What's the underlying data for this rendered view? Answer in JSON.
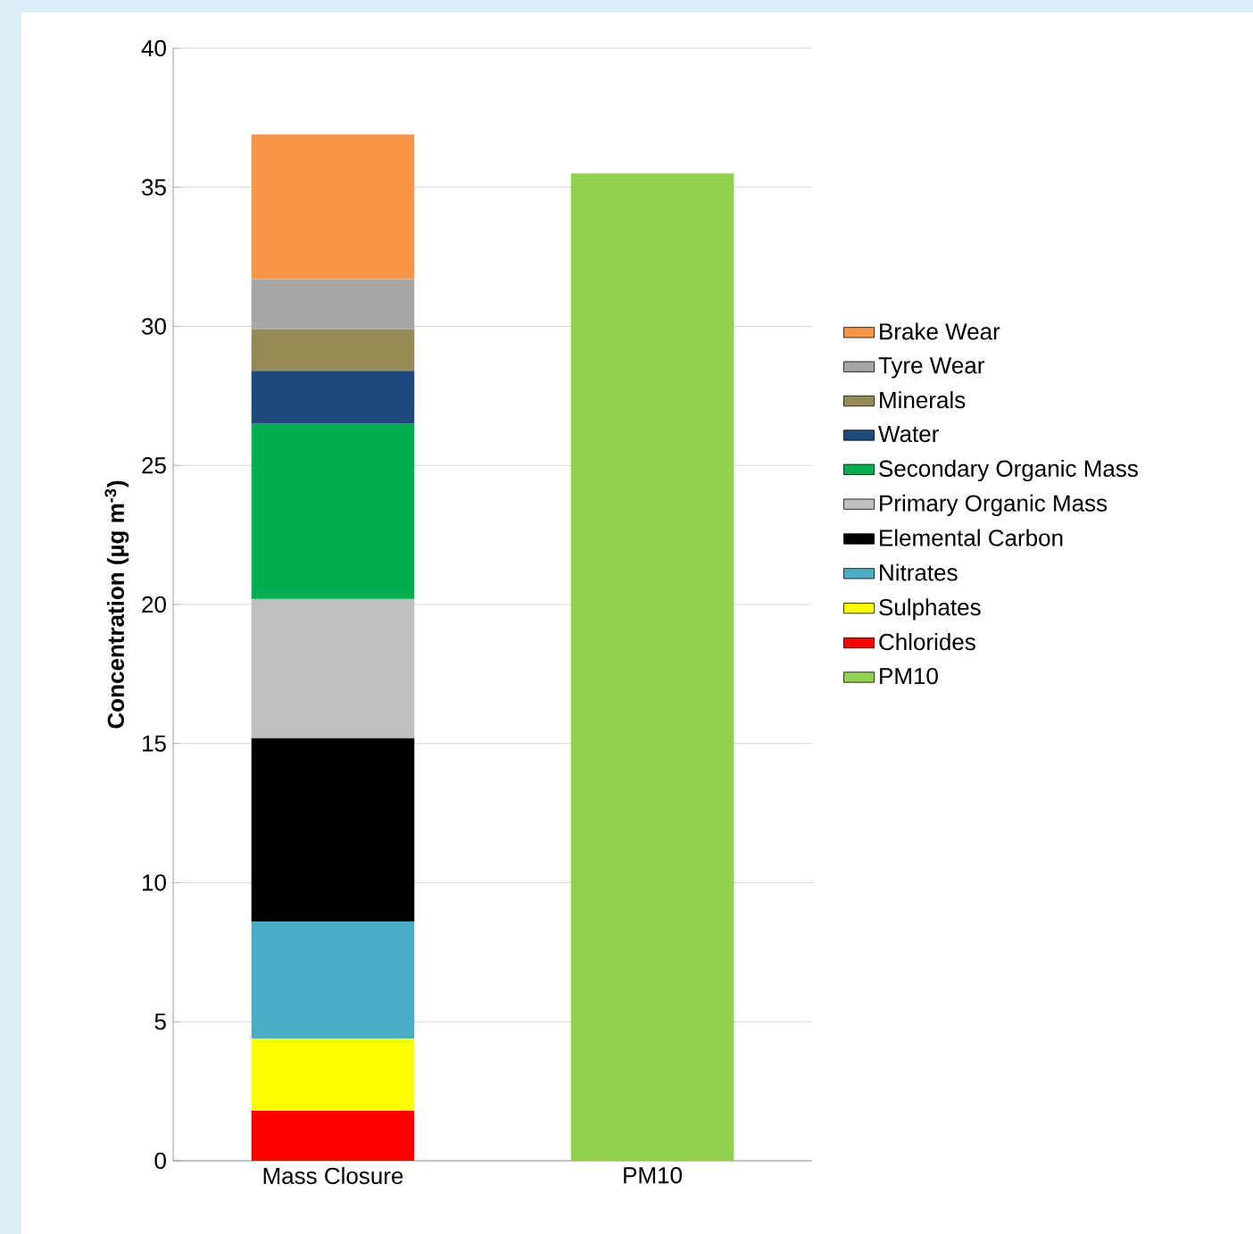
{
  "chart_data": {
    "type": "bar",
    "stacked": true,
    "categories": [
      "Mass Closure",
      "PM10"
    ],
    "ylabel": "Concentration (µg m$^{-3}$)",
    "ylim": [
      0,
      40
    ],
    "yticks": [
      0,
      5,
      10,
      15,
      20,
      25,
      30,
      35,
      40
    ],
    "grid": "y",
    "legend": "right",
    "series": [
      {
        "name": "PM10",
        "color": "#92d050",
        "values": [
          null,
          35.5
        ]
      },
      {
        "name": "Chlorides",
        "color": "#ff0000",
        "values": [
          1.8,
          null
        ]
      },
      {
        "name": "Sulphates",
        "color": "#ffff00",
        "values": [
          2.6,
          null
        ]
      },
      {
        "name": "Nitrates",
        "color": "#4bacc6",
        "values": [
          4.2,
          null
        ]
      },
      {
        "name": "Elemental Carbon",
        "color": "#000000",
        "values": [
          6.6,
          null
        ]
      },
      {
        "name": "Primary Organic Mass",
        "color": "#bfbfbf",
        "values": [
          5.0,
          null
        ]
      },
      {
        "name": "Secondary Organic Mass",
        "color": "#00b050",
        "values": [
          6.3,
          null
        ]
      },
      {
        "name": "Water",
        "color": "#1f497d",
        "values": [
          1.9,
          null
        ]
      },
      {
        "name": "Minerals",
        "color": "#948a54",
        "values": [
          1.5,
          null
        ]
      },
      {
        "name": "Tyre Wear",
        "color": "#a6a6a6",
        "values": [
          1.8,
          null
        ]
      },
      {
        "name": "Brake Wear",
        "color": "#f79646",
        "values": [
          5.2,
          null
        ]
      }
    ]
  }
}
